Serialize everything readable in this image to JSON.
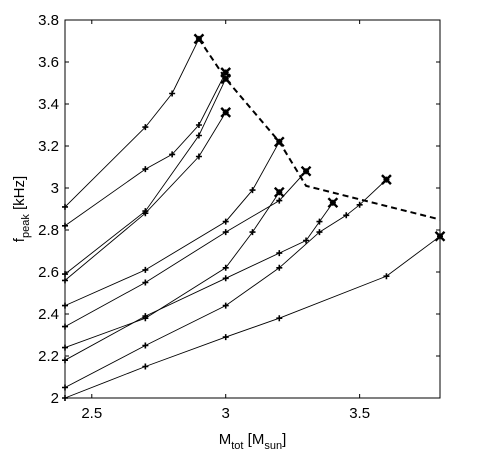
{
  "chart_data": {
    "type": "line",
    "xlabel": {
      "main": "M",
      "sub": "tot",
      "unit_open": " [M",
      "unit_sub": "sun",
      "unit_close": "]"
    },
    "ylabel": {
      "main": "f",
      "sub": "peak",
      "unit": " [kHz]"
    },
    "xlim": [
      2.4,
      3.8
    ],
    "ylim": [
      2.0,
      3.8
    ],
    "xticks": [
      2.5,
      3,
      3.5
    ],
    "xtick_labels": [
      "2.5",
      "3",
      "3.5"
    ],
    "yticks": [
      2.0,
      2.2,
      2.4,
      2.6,
      2.8,
      3.0,
      3.2,
      3.4,
      3.6,
      3.8
    ],
    "ytick_labels": [
      "2",
      "2.2",
      "2.4",
      "2.6",
      "2.8",
      "3",
      "3.2",
      "3.4",
      "3.6",
      "3.8"
    ],
    "grid": false,
    "series": [
      {
        "x": [
          2.4,
          2.7,
          2.8,
          2.9
        ],
        "y": [
          2.91,
          3.29,
          3.45,
          3.71
        ]
      },
      {
        "x": [
          2.4,
          2.7,
          2.8,
          2.9,
          3.0
        ],
        "y": [
          2.82,
          3.09,
          3.16,
          3.3,
          3.55
        ]
      },
      {
        "x": [
          2.4,
          2.7,
          2.9,
          3.0
        ],
        "y": [
          2.59,
          2.89,
          3.25,
          3.52
        ]
      },
      {
        "x": [
          2.4,
          2.7,
          2.9,
          3.0
        ],
        "y": [
          2.56,
          2.88,
          3.15,
          3.36
        ]
      },
      {
        "x": [
          2.4,
          2.7,
          3.0,
          3.1,
          3.2
        ],
        "y": [
          2.44,
          2.61,
          2.84,
          2.99,
          3.22
        ]
      },
      {
        "x": [
          2.4,
          2.7,
          3.0,
          3.2,
          3.3
        ],
        "y": [
          2.34,
          2.55,
          2.79,
          2.94,
          3.08
        ]
      },
      {
        "x": [
          2.4,
          2.7,
          3.0,
          3.1,
          3.2
        ],
        "y": [
          2.24,
          2.38,
          2.62,
          2.79,
          2.98
        ]
      },
      {
        "x": [
          2.4,
          2.7,
          3.0,
          3.2,
          3.3,
          3.35,
          3.4
        ],
        "y": [
          2.18,
          2.39,
          2.57,
          2.69,
          2.75,
          2.84,
          2.93
        ]
      },
      {
        "x": [
          2.4,
          2.7,
          3.0,
          3.2,
          3.35,
          3.45,
          3.5,
          3.6
        ],
        "y": [
          2.05,
          2.25,
          2.44,
          2.62,
          2.79,
          2.87,
          2.92,
          3.04
        ]
      },
      {
        "x": [
          2.4,
          2.7,
          3.0,
          3.2,
          3.6,
          3.8
        ],
        "y": [
          2.0,
          2.15,
          2.29,
          2.38,
          2.58,
          2.77
        ]
      }
    ],
    "envelope": {
      "style": "dashed",
      "x": [
        2.9,
        3.0,
        3.2,
        3.3,
        3.8
      ],
      "y": [
        3.71,
        3.52,
        3.22,
        3.01,
        2.85
      ]
    },
    "maxima_markers": {
      "marker": "x",
      "x": [
        2.9,
        3.0,
        3.0,
        3.0,
        3.2,
        3.2,
        3.3,
        3.4,
        3.6,
        3.8
      ],
      "y": [
        3.71,
        3.55,
        3.52,
        3.36,
        3.22,
        2.98,
        3.08,
        2.93,
        3.04,
        2.77
      ]
    }
  }
}
